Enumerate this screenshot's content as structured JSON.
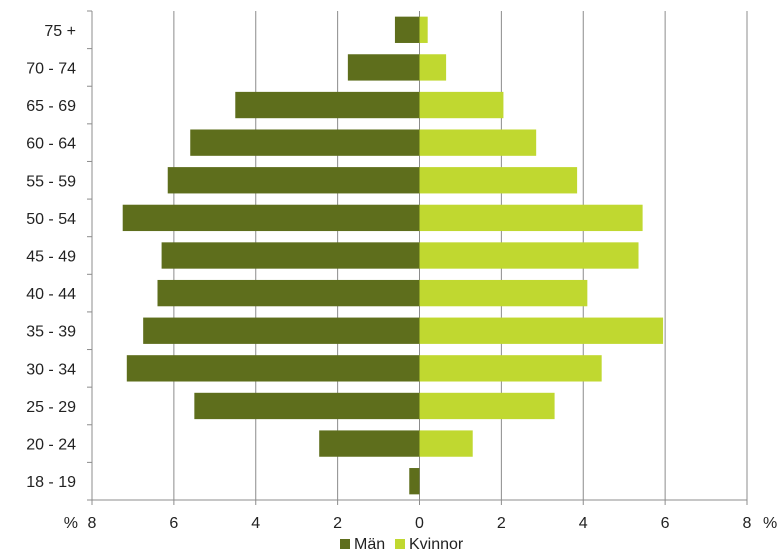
{
  "chart_data": {
    "type": "bar",
    "orientation": "horizontal",
    "layout": "population-pyramid",
    "categories": [
      "75 +",
      "70 - 74",
      "65 - 69",
      "60 - 64",
      "55 - 59",
      "50 - 54",
      "45 - 49",
      "40 - 44",
      "35 - 39",
      "30 - 34",
      "25 - 29",
      "20 - 24",
      "18 - 19"
    ],
    "series": [
      {
        "name": "Män",
        "side": "left",
        "color": "#5e6e1c",
        "values": [
          0.6,
          1.75,
          4.5,
          5.6,
          6.15,
          7.25,
          6.3,
          6.4,
          6.75,
          7.15,
          5.5,
          2.45,
          0.25
        ]
      },
      {
        "name": "Kvinnor",
        "side": "right",
        "color": "#c0d830",
        "values": [
          0.2,
          0.65,
          2.05,
          2.85,
          3.85,
          5.45,
          5.35,
          4.1,
          5.95,
          4.45,
          3.3,
          1.3,
          0.0
        ]
      }
    ],
    "xlim": [
      -8,
      8
    ],
    "xticks": [
      -8,
      -6,
      -4,
      -2,
      0,
      2,
      4,
      6,
      8
    ],
    "xtick_labels": [
      "8",
      "6",
      "4",
      "2",
      "0",
      "2",
      "4",
      "6",
      "8"
    ],
    "x_unit_left": "%",
    "x_unit_right": "%",
    "grid": "vertical",
    "legend": "bottom",
    "grid_color": "#8c8c8c"
  }
}
